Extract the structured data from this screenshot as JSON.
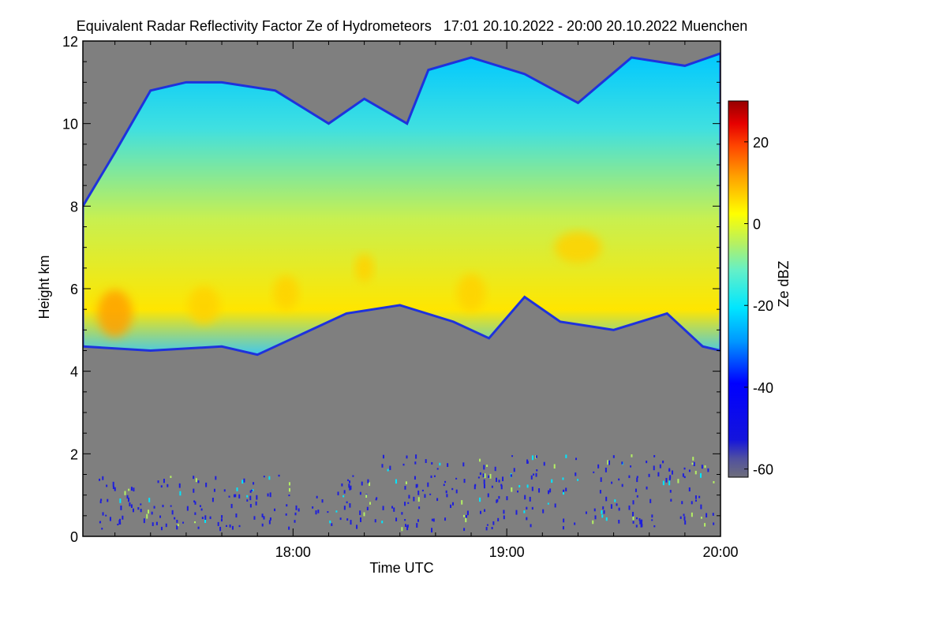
{
  "chart_data": {
    "type": "heatmap",
    "title": "Equivalent Radar Reflectivity Factor Ze of Hydrometeors",
    "time_range": "17:01 20.10.2022 - 20:00 20.10.2022",
    "location": "Muenchen",
    "xlabel": "Time UTC",
    "ylabel": "Height km",
    "xlim": [
      "17:01",
      "20:00"
    ],
    "ylim": [
      0,
      12
    ],
    "x_tick_labels": [
      "18:00",
      "19:00",
      "20:00"
    ],
    "y_tick_labels": [
      "0",
      "2",
      "4",
      "6",
      "8",
      "10",
      "12"
    ],
    "colorbar": {
      "label": "Ze dBZ",
      "range": [
        -62,
        30
      ],
      "tick_labels": [
        "20",
        "0",
        "-20",
        "-40",
        "-60"
      ]
    },
    "no_signal_color": "#7f7f7f",
    "colormap": [
      "#6e6e7a",
      "#1414dc",
      "#0000ff",
      "#0096ff",
      "#00e6ff",
      "#64f0c8",
      "#b4f064",
      "#ffff00",
      "#ffa000",
      "#ff4600",
      "#e60000",
      "#960000"
    ],
    "features": {
      "cloud_base_km": [
        [
          "17:01",
          4.6
        ],
        [
          "17:20",
          4.5
        ],
        [
          "17:40",
          4.6
        ],
        [
          "17:50",
          4.4
        ],
        [
          "18:00",
          4.8
        ],
        [
          "18:15",
          5.4
        ],
        [
          "18:30",
          5.6
        ],
        [
          "18:45",
          5.2
        ],
        [
          "18:55",
          4.8
        ],
        [
          "19:05",
          5.8
        ],
        [
          "19:15",
          5.2
        ],
        [
          "19:30",
          5.0
        ],
        [
          "19:45",
          5.4
        ],
        [
          "19:55",
          4.6
        ],
        [
          "20:00",
          4.5
        ]
      ],
      "cloud_top_km": [
        [
          "17:01",
          8.0
        ],
        [
          "17:10",
          9.3
        ],
        [
          "17:20",
          10.8
        ],
        [
          "17:30",
          11.0
        ],
        [
          "17:40",
          11.0
        ],
        [
          "17:55",
          10.8
        ],
        [
          "18:10",
          10.0
        ],
        [
          "18:20",
          10.6
        ],
        [
          "18:32",
          10.0
        ],
        [
          "18:38",
          11.3
        ],
        [
          "18:50",
          11.6
        ],
        [
          "19:05",
          11.2
        ],
        [
          "19:20",
          10.5
        ],
        [
          "19:35",
          11.6
        ],
        [
          "19:50",
          11.4
        ],
        [
          "20:00",
          11.7
        ]
      ],
      "max_reflectivity_dBZ": 5,
      "strongest_echo": [
        "17:08",
        5.4
      ]
    }
  }
}
